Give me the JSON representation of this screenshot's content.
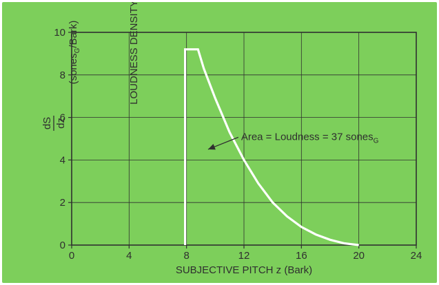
{
  "colors": {
    "background": "#7dcf5b",
    "grid": "#2f2f2f",
    "curve": "#ffffff",
    "text": "#2f2f2f"
  },
  "chart_data": {
    "type": "line",
    "xlabel": "SUBJECTIVE PITCH z (Bark)",
    "ylabel": {
      "prefix": "LOUDNESS DENSITY",
      "fraction_top": "dS",
      "fraction_bottom": "dz",
      "unit_open": "(sones",
      "unit_sub": "G",
      "unit_close": "/Bark)"
    },
    "xlim": [
      0,
      24
    ],
    "ylim": [
      0,
      10
    ],
    "x_ticks": [
      0,
      4,
      8,
      12,
      16,
      20,
      24
    ],
    "y_ticks": [
      0,
      2,
      4,
      6,
      8,
      10
    ],
    "grid": true,
    "series": [
      {
        "x": [
          7.9,
          7.9,
          8.8,
          9.2,
          10,
          11,
          12,
          13,
          14,
          15,
          16,
          17,
          18,
          19,
          20
        ],
        "y": [
          0,
          9.2,
          9.2,
          8.3,
          6.9,
          5.3,
          4.0,
          2.9,
          2.0,
          1.35,
          0.85,
          0.5,
          0.25,
          0.08,
          0.0
        ]
      }
    ],
    "annotation": {
      "text": "Area = Loudness = 37 sones",
      "sub": "G",
      "x": 11.8,
      "y": 5.1,
      "arrow_to": [
        9.5,
        4.5
      ]
    }
  }
}
